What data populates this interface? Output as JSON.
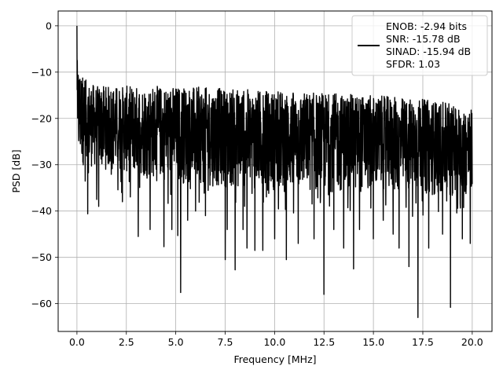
{
  "chart_data": {
    "type": "line",
    "title": "",
    "xlabel": "Frequency [MHz]",
    "ylabel": "PSD [dB]",
    "xlim": [
      -0.95,
      21.0
    ],
    "ylim": [
      -66.0,
      3.2
    ],
    "xticks": [
      0.0,
      2.5,
      5.0,
      7.5,
      10.0,
      12.5,
      15.0,
      17.5,
      20.0
    ],
    "xtick_labels": [
      "0.0",
      "2.5",
      "5.0",
      "7.5",
      "10.0",
      "12.5",
      "15.0",
      "17.5",
      "20.0"
    ],
    "yticks": [
      0,
      -10,
      -20,
      -30,
      -40,
      -50,
      -60
    ],
    "ytick_labels": [
      "0",
      "−10",
      "−20",
      "−30",
      "−40",
      "−50",
      "−60"
    ],
    "grid": true,
    "legend_position": "top-right",
    "series": [
      {
        "name": "ENOB: -2.94 bits\nSNR: -15.78 dB\nSINAD: -15.94 dB\nSFDR: 1.03",
        "color": "#000000",
        "x_start": 0.0,
        "x_end": 20.0,
        "peak_at_dc": 0.0,
        "noise_top_envelope": [
          [
            0.0,
            -8
          ],
          [
            0.5,
            -12
          ],
          [
            1.0,
            -13
          ],
          [
            2.0,
            -13
          ],
          [
            5.0,
            -13
          ],
          [
            10.0,
            -14
          ],
          [
            15.0,
            -15
          ],
          [
            18.0,
            -16
          ],
          [
            20.0,
            -18
          ]
        ],
        "noise_bottom_envelope": [
          [
            0.0,
            -30
          ],
          [
            5.0,
            -34
          ],
          [
            10.0,
            -36
          ],
          [
            15.0,
            -36
          ],
          [
            20.0,
            -37
          ]
        ],
        "notable_dips": [
          [
            0.55,
            -40.6
          ],
          [
            1.0,
            -37.5
          ],
          [
            1.1,
            -39.0
          ],
          [
            2.3,
            -38.0
          ],
          [
            3.1,
            -45.5
          ],
          [
            3.7,
            -44.0
          ],
          [
            4.4,
            -47.7
          ],
          [
            4.8,
            -44.0
          ],
          [
            5.1,
            -45.3
          ],
          [
            5.25,
            -57.6
          ],
          [
            5.6,
            -42.0
          ],
          [
            6.0,
            -40.0
          ],
          [
            6.5,
            -41.0
          ],
          [
            7.5,
            -50.5
          ],
          [
            7.6,
            -44.0
          ],
          [
            8.0,
            -52.7
          ],
          [
            8.4,
            -44.0
          ],
          [
            8.6,
            -48.0
          ],
          [
            9.0,
            -48.5
          ],
          [
            9.4,
            -48.5
          ],
          [
            10.0,
            -46.0
          ],
          [
            10.6,
            -50.5
          ],
          [
            11.2,
            -47.0
          ],
          [
            12.0,
            -46.0
          ],
          [
            12.5,
            -58.0
          ],
          [
            13.0,
            -44.0
          ],
          [
            13.5,
            -48.0
          ],
          [
            14.0,
            -52.5
          ],
          [
            14.3,
            -44.0
          ],
          [
            15.0,
            -46.0
          ],
          [
            15.5,
            -42.0
          ],
          [
            16.0,
            -45.0
          ],
          [
            16.3,
            -48.0
          ],
          [
            16.8,
            -52.0
          ],
          [
            17.25,
            -63.0
          ],
          [
            17.8,
            -48.0
          ],
          [
            18.5,
            -45.0
          ],
          [
            18.9,
            -60.8
          ],
          [
            19.5,
            -46.0
          ],
          [
            19.9,
            -47.0
          ]
        ]
      }
    ]
  }
}
